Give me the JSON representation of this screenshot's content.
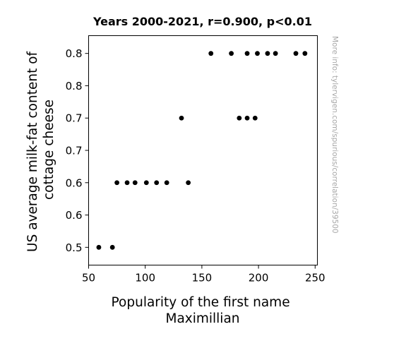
{
  "chart_data": {
    "type": "scatter",
    "title": "Years 2000-2021, r=0.900, p<0.01",
    "xlabel": [
      "Popularity of the first name",
      "Maximillian"
    ],
    "ylabel": [
      "US average milk-fat content of",
      "cottage cheese"
    ],
    "xlim": [
      50,
      252
    ],
    "ylim": [
      0.4725,
      0.8275
    ],
    "x_ticks": [
      50,
      100,
      150,
      200,
      250
    ],
    "x_tick_labels": [
      "50",
      "100",
      "150",
      "200",
      "250"
    ],
    "y_ticks": [
      0.5,
      0.55,
      0.6,
      0.65,
      0.7,
      0.75,
      0.8
    ],
    "y_tick_labels": [
      "0.5",
      "0.6",
      "0.6",
      "0.7",
      "0.7",
      "0.8",
      "0.8"
    ],
    "grid": false,
    "legend": "none",
    "marker_color": "#000000",
    "points": [
      {
        "x": 59,
        "y": 0.5
      },
      {
        "x": 71,
        "y": 0.5
      },
      {
        "x": 75,
        "y": 0.6
      },
      {
        "x": 84,
        "y": 0.6
      },
      {
        "x": 91,
        "y": 0.6
      },
      {
        "x": 101,
        "y": 0.6
      },
      {
        "x": 110,
        "y": 0.6
      },
      {
        "x": 119,
        "y": 0.6
      },
      {
        "x": 132,
        "y": 0.7
      },
      {
        "x": 138,
        "y": 0.6
      },
      {
        "x": 158,
        "y": 0.8
      },
      {
        "x": 176,
        "y": 0.8
      },
      {
        "x": 183,
        "y": 0.7
      },
      {
        "x": 190,
        "y": 0.8
      },
      {
        "x": 190,
        "y": 0.7
      },
      {
        "x": 197,
        "y": 0.7
      },
      {
        "x": 199,
        "y": 0.8
      },
      {
        "x": 208,
        "y": 0.8
      },
      {
        "x": 215,
        "y": 0.8
      },
      {
        "x": 233,
        "y": 0.8
      },
      {
        "x": 241,
        "y": 0.8
      }
    ]
  },
  "watermark": "More info: tylervigen.com/spurious/correlation/39500"
}
